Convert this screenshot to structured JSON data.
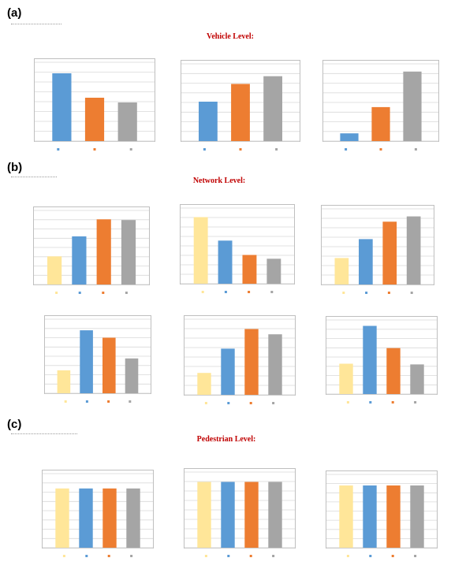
{
  "panels": {
    "a": "(a)",
    "b": "(b)",
    "c": "(c)"
  },
  "titles": {
    "vehicle": "Vehicle Level:",
    "network": "Network Level:",
    "pedestrian": "Pedestrian Level:"
  },
  "colors": {
    "yellow": "#ffe699",
    "blue": "#5b9bd5",
    "orange": "#ed7d31",
    "gray": "#a5a5a5",
    "gridline": "#d9d9d9",
    "frame": "#bfbfbf",
    "title_red": "#c00000"
  },
  "chart_data": [
    {
      "group": "vehicle",
      "type": "bar",
      "series_colors": [
        "blue",
        "orange",
        "gray"
      ],
      "values": [
        86,
        55,
        49
      ],
      "ylim": [
        0,
        100
      ],
      "grid": true,
      "legend": "bottom"
    },
    {
      "group": "vehicle",
      "type": "bar",
      "series_colors": [
        "blue",
        "orange",
        "gray"
      ],
      "values": [
        51,
        74,
        84
      ],
      "ylim": [
        0,
        100
      ],
      "grid": true,
      "legend": "bottom"
    },
    {
      "group": "vehicle",
      "type": "bar",
      "series_colors": [
        "blue",
        "orange",
        "gray"
      ],
      "values": [
        10,
        44,
        90
      ],
      "ylim": [
        0,
        100
      ],
      "grid": true,
      "legend": "bottom"
    },
    {
      "group": "network",
      "type": "bar",
      "series_colors": [
        "yellow",
        "blue",
        "orange",
        "gray"
      ],
      "values": [
        38,
        65,
        88,
        87
      ],
      "ylim": [
        0,
        100
      ],
      "grid": true,
      "legend": "bottom"
    },
    {
      "group": "network",
      "type": "bar",
      "series_colors": [
        "yellow",
        "blue",
        "orange",
        "gray"
      ],
      "values": [
        88,
        57,
        38,
        33
      ],
      "ylim": [
        0,
        100
      ],
      "grid": true,
      "legend": "bottom"
    },
    {
      "group": "network",
      "type": "bar",
      "series_colors": [
        "yellow",
        "blue",
        "orange",
        "gray"
      ],
      "values": [
        35,
        60,
        83,
        90
      ],
      "ylim": [
        0,
        100
      ],
      "grid": true,
      "legend": "bottom"
    },
    {
      "group": "network",
      "type": "bar",
      "series_colors": [
        "yellow",
        "blue",
        "orange",
        "gray"
      ],
      "values": [
        31,
        85,
        75,
        47
      ],
      "ylim": [
        0,
        100
      ],
      "grid": true,
      "legend": "bottom"
    },
    {
      "group": "network",
      "type": "bar",
      "series_colors": [
        "yellow",
        "blue",
        "orange",
        "gray"
      ],
      "values": [
        29,
        61,
        87,
        80
      ],
      "ylim": [
        0,
        100
      ],
      "grid": true,
      "legend": "bottom"
    },
    {
      "group": "network",
      "type": "bar",
      "series_colors": [
        "yellow",
        "blue",
        "orange",
        "gray"
      ],
      "values": [
        41,
        92,
        62,
        40
      ],
      "ylim": [
        0,
        100
      ],
      "grid": true,
      "legend": "bottom"
    },
    {
      "group": "pedestrian",
      "type": "bar",
      "series_colors": [
        "yellow",
        "blue",
        "orange",
        "gray"
      ],
      "values": [
        80,
        80,
        80,
        80
      ],
      "ylim": [
        0,
        100
      ],
      "grid": true,
      "legend": "bottom"
    },
    {
      "group": "pedestrian",
      "type": "bar",
      "series_colors": [
        "yellow",
        "blue",
        "orange",
        "gray"
      ],
      "values": [
        87,
        87,
        87,
        87
      ],
      "ylim": [
        0,
        100
      ],
      "grid": true,
      "legend": "bottom"
    },
    {
      "group": "pedestrian",
      "type": "bar",
      "series_colors": [
        "yellow",
        "blue",
        "orange",
        "gray"
      ],
      "values": [
        85,
        85,
        85,
        85
      ],
      "ylim": [
        0,
        100
      ],
      "grid": true,
      "legend": "bottom"
    }
  ]
}
